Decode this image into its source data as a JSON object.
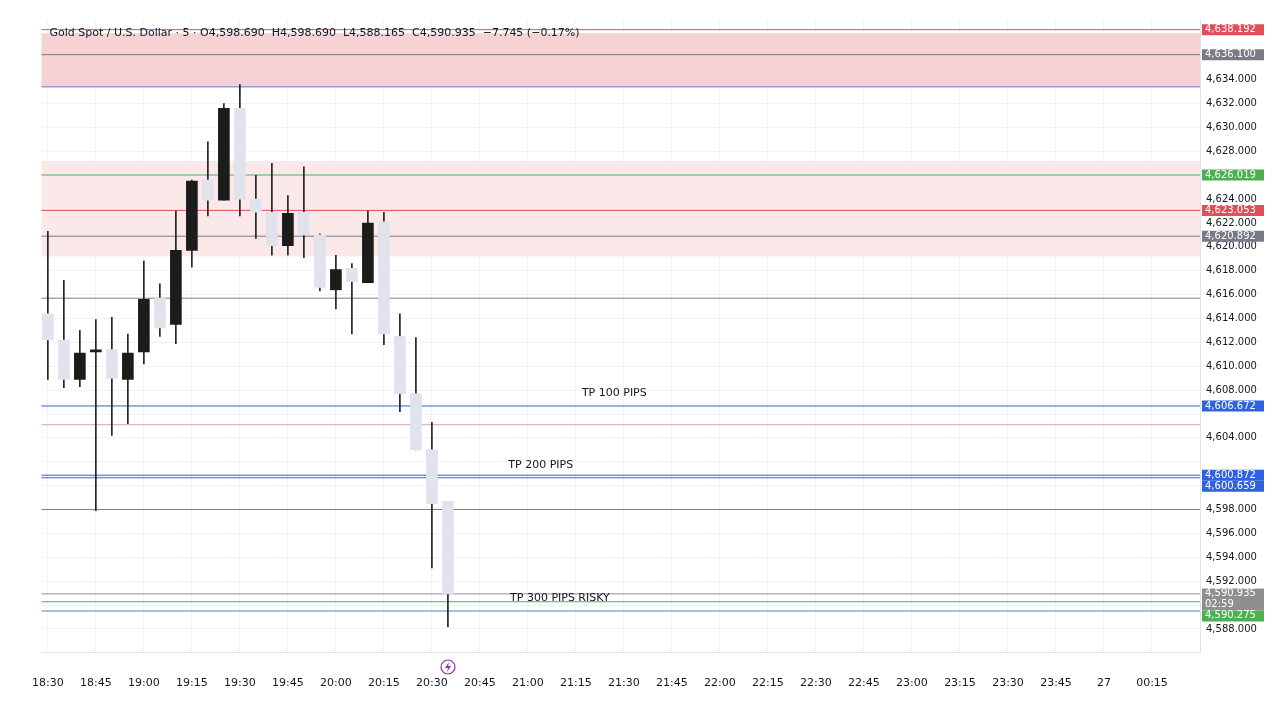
{
  "chart_data": {
    "type": "candlestick",
    "title": "Gold Spot / U.S. Dollar · 5 · O4,598.690  H4,598.690  L4,588.165  C4,590.935  −7.745 (−0.17%)",
    "x": [
      "--08-26T18:30",
      "--08-26T18:35",
      "--08-26T18:40",
      "--08-26T18:45",
      "--08-26T18:50",
      "--08-26T18:55",
      "--08-26T19:00",
      "--08-26T19:05",
      "--08-26T19:10",
      "--08-26T19:15",
      "--08-26T19:20",
      "--08-26T19:25",
      "--08-26T19:30",
      "--08-26T19:35",
      "--08-26T19:40",
      "--08-26T19:45",
      "--08-26T19:50",
      "--08-26T19:55",
      "--08-26T20:00",
      "--08-26T20:05",
      "--08-26T20:10",
      "--08-26T20:15",
      "--08-26T20:20",
      "--08-26T20:25",
      "--08-26T20:30",
      "--08-26T20:35"
    ],
    "ohlc": [
      [
        4614.4,
        4621.3,
        4608.9,
        4612.2
      ],
      [
        4612.2,
        4617.2,
        4608.2,
        4608.9
      ],
      [
        4608.9,
        4613.0,
        4608.3,
        4611.1
      ],
      [
        4611.2,
        4613.9,
        4597.9,
        4611.3
      ],
      [
        4611.4,
        4614.1,
        4604.2,
        4609.0
      ],
      [
        4608.9,
        4612.7,
        4605.2,
        4611.1
      ],
      [
        4611.2,
        4618.8,
        4610.2,
        4615.6
      ],
      [
        4615.7,
        4616.9,
        4612.5,
        4613.2
      ],
      [
        4613.5,
        4623.0,
        4611.9,
        4619.7
      ],
      [
        4619.7,
        4625.6,
        4618.3,
        4625.5
      ],
      [
        4625.6,
        4628.8,
        4622.6,
        4623.9
      ],
      [
        4623.9,
        4632.0,
        4623.9,
        4631.6
      ],
      [
        4631.6,
        4633.6,
        4622.6,
        4624.0
      ],
      [
        4624.0,
        4626.0,
        4620.7,
        4622.9
      ],
      [
        4622.9,
        4627.0,
        4619.3,
        4620.1
      ],
      [
        4620.1,
        4624.3,
        4619.3,
        4622.8
      ],
      [
        4622.9,
        4626.7,
        4619.1,
        4621.0
      ],
      [
        4621.0,
        4621.1,
        4616.3,
        4616.6
      ],
      [
        4616.4,
        4619.3,
        4614.8,
        4618.1
      ],
      [
        4618.2,
        4618.6,
        4612.7,
        4617.1
      ],
      [
        4617.0,
        4623.0,
        4617.0,
        4622.0
      ],
      [
        4622.1,
        4622.9,
        4611.8,
        4612.7
      ],
      [
        4612.5,
        4614.4,
        4606.2,
        4607.7
      ],
      [
        4607.7,
        4612.4,
        4603.0,
        4603.0
      ],
      [
        4603.0,
        4605.3,
        4593.1,
        4598.5
      ],
      [
        4598.69,
        4598.69,
        4588.165,
        4590.935
      ]
    ],
    "colors": [
      "#e0e3eb",
      "#e0e3eb",
      "#1c1c1c",
      "#1c1c1c",
      "#e0e3eb",
      "#1c1c1c",
      "#1c1c1c",
      "#e0e3eb",
      "#1c1c1c",
      "#1c1c1c",
      "#e0e3eb",
      "#1c1c1c",
      "#e0e3eb",
      "#e0e3eb",
      "#e0e3eb",
      "#1c1c1c",
      "#e0e3eb",
      "#e0e3eb",
      "#1c1c1c",
      "#e0e3eb",
      "#1c1c1c",
      "#e0e3eb",
      "#e0e3eb",
      "#e0e3eb",
      "#e0e3eb",
      "#e0e3eb"
    ],
    "xlim": [
      "--08-26T18:28",
      "--08-27T00:30"
    ],
    "xticks": [
      {
        "value": "--08-26T18:30",
        "label": "18:30"
      },
      {
        "value": "--08-26T18:45",
        "label": "18:45"
      },
      {
        "value": "--08-26T19:00",
        "label": "19:00"
      },
      {
        "value": "--08-26T19:15",
        "label": "19:15"
      },
      {
        "value": "--08-26T19:30",
        "label": "19:30"
      },
      {
        "value": "--08-26T19:45",
        "label": "19:45"
      },
      {
        "value": "--08-26T20:00",
        "label": "20:00"
      },
      {
        "value": "--08-26T20:15",
        "label": "20:15"
      },
      {
        "value": "--08-26T20:30",
        "label": "20:30"
      },
      {
        "value": "--08-26T20:45",
        "label": "20:45"
      },
      {
        "value": "--08-26T21:00",
        "label": "21:00"
      },
      {
        "value": "--08-26T21:15",
        "label": "21:15"
      },
      {
        "value": "--08-26T21:30",
        "label": "21:30"
      },
      {
        "value": "--08-26T21:45",
        "label": "21:45"
      },
      {
        "value": "--08-26T22:00",
        "label": "22:00"
      },
      {
        "value": "--08-26T22:15",
        "label": "22:15"
      },
      {
        "value": "--08-26T22:30",
        "label": "22:30"
      },
      {
        "value": "--08-26T22:45",
        "label": "22:45"
      },
      {
        "value": "--08-26T23:00",
        "label": "23:00"
      },
      {
        "value": "--08-26T23:15",
        "label": "23:15"
      },
      {
        "value": "--08-26T23:30",
        "label": "23:30"
      },
      {
        "value": "--08-26T23:45",
        "label": "23:45"
      },
      {
        "value": "--08-27T00:00",
        "label": "27"
      },
      {
        "value": "--08-27T00:15",
        "label": "00:15"
      }
    ],
    "ylim": [
      4586,
      4639
    ],
    "yticks": [
      {
        "value": 4588,
        "label": "4,588.000"
      },
      {
        "value": 4590,
        "label": null
      },
      {
        "value": 4592,
        "label": "4,592.000"
      },
      {
        "value": 4594,
        "label": "4,594.000"
      },
      {
        "value": 4596,
        "label": "4,596.000"
      },
      {
        "value": 4598,
        "label": "4,598.000"
      },
      {
        "value": 4600,
        "label": null
      },
      {
        "value": 4602,
        "label": null
      },
      {
        "value": 4604,
        "label": "4,604.000"
      },
      {
        "value": 4606,
        "label": null
      },
      {
        "value": 4608,
        "label": "4,608.000"
      },
      {
        "value": 4610,
        "label": "4,610.000"
      },
      {
        "value": 4612,
        "label": "4,612.000"
      },
      {
        "value": 4614,
        "label": "4,614.000"
      },
      {
        "value": 4616,
        "label": "4,616.000"
      },
      {
        "value": 4618,
        "label": "4,618.000"
      },
      {
        "value": 4620,
        "label": "4,620.000"
      },
      {
        "value": 4622,
        "label": "4,622.000"
      },
      {
        "value": 4624,
        "label": "4,624.000"
      },
      {
        "value": 4626,
        "label": null
      },
      {
        "value": 4628,
        "label": "4,628.000"
      },
      {
        "value": 4630,
        "label": "4,630.000"
      },
      {
        "value": 4632,
        "label": "4,632.000"
      },
      {
        "value": 4634,
        "label": "4,634.000"
      }
    ],
    "grid": true,
    "bands": [
      {
        "axis": "y",
        "from": 4633.4,
        "to": 4637.9,
        "color": "#f6d2d5"
      },
      {
        "axis": "y",
        "from": 4624.1,
        "to": 4627.2,
        "color": "#fbe9ea"
      },
      {
        "axis": "y",
        "from": 4619.2,
        "to": 4624.1,
        "color": "#fbe9ea"
      }
    ],
    "ref_lines": [
      {
        "axis": "y",
        "value": 4633.4,
        "color": "#5b7fc7"
      },
      {
        "axis": "y",
        "value": 4615.7,
        "color": "#7f7f7f"
      },
      {
        "axis": "y",
        "value": 4605.1,
        "color": "#d9a0a0"
      },
      {
        "axis": "y",
        "value": 4598.0,
        "color": "#7f7f7f"
      },
      {
        "axis": "y",
        "value": 4589.5,
        "color": "#5b7fc7"
      },
      {
        "axis": "y",
        "value": 4638.192,
        "label": "4,638.192",
        "color": "#e04e57"
      },
      {
        "axis": "y",
        "value": 4636.1,
        "label": "4,636.100",
        "color": "#787b86"
      },
      {
        "axis": "y",
        "value": 4626.019,
        "label": "4,626.019",
        "color": "#4caf50"
      },
      {
        "axis": "y",
        "value": 4623.053,
        "label": "4,623.053",
        "color": "#e04e57"
      },
      {
        "axis": "y",
        "value": 4620.892,
        "label": "4,620.892",
        "color": "#787b86"
      },
      {
        "axis": "y",
        "value": 4606.672,
        "label": "4,606.672",
        "color": "#2f62e0"
      },
      {
        "axis": "y",
        "value": 4600.872,
        "label": "4,600.872",
        "color": "#2f62e0"
      },
      {
        "axis": "y",
        "value": 4600.659,
        "label": "4,600.659",
        "color": "#2f62e0"
      },
      {
        "axis": "y",
        "value": 4590.935,
        "label": "4,590.935\n02:59",
        "color": "#8f8f8f"
      },
      {
        "axis": "y",
        "value": 4590.275,
        "label": "4,590.275",
        "color": "#4caf50"
      }
    ],
    "annotations": [
      {
        "text": "TP 100 PIPS",
        "x": "--08-26T21:27",
        "y": 4606.672
      },
      {
        "text": "TP 200 PIPS",
        "x": "--08-26T21:04",
        "y": 4600.659
      },
      {
        "text": "TP 300 PIPS RISKY",
        "x": "--08-26T21:10",
        "y": 4589.5
      }
    ]
  }
}
